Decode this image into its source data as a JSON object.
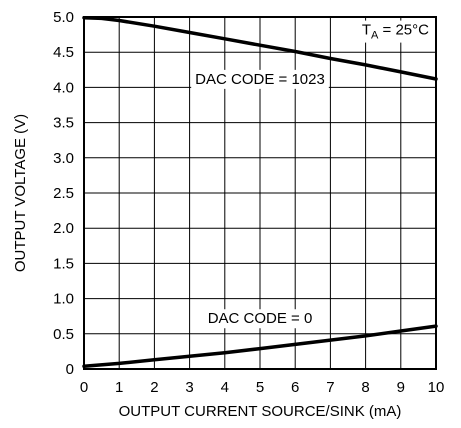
{
  "chart_data": {
    "type": "line",
    "title": "",
    "xlabel": "OUTPUT CURRENT SOURCE/SINK (mA)",
    "ylabel": "OUTPUT VOLTAGE (V)",
    "xlim": [
      0,
      10
    ],
    "ylim": [
      0,
      5.0
    ],
    "x_ticks": [
      0,
      1,
      2,
      3,
      4,
      5,
      6,
      7,
      8,
      9,
      10
    ],
    "x_tick_labels": [
      "0",
      "1",
      "2",
      "3",
      "4",
      "5",
      "6",
      "7",
      "8",
      "9",
      "10"
    ],
    "y_ticks": [
      0,
      0.5,
      1.0,
      1.5,
      2.0,
      2.5,
      3.0,
      3.5,
      4.0,
      4.5,
      5.0
    ],
    "y_tick_labels": [
      "0",
      "0.5",
      "1.0",
      "1.5",
      "2.0",
      "2.5",
      "3.0",
      "3.5",
      "4.0",
      "4.5",
      "5.0"
    ],
    "grid": true,
    "series": [
      {
        "name": "DAC CODE = 1023",
        "x": [
          0,
          0.5,
          1,
          2,
          3,
          4,
          5,
          6,
          7,
          8,
          9,
          10
        ],
        "y": [
          4.99,
          4.98,
          4.95,
          4.87,
          4.78,
          4.69,
          4.6,
          4.51,
          4.41,
          4.32,
          4.22,
          4.12
        ]
      },
      {
        "name": "DAC CODE = 0",
        "x": [
          0,
          1,
          2,
          3,
          4,
          5,
          6,
          7,
          8,
          9,
          10
        ],
        "y": [
          0.04,
          0.08,
          0.13,
          0.18,
          0.23,
          0.29,
          0.35,
          0.41,
          0.47,
          0.54,
          0.61
        ]
      }
    ],
    "annotations": [
      {
        "text_main": "T",
        "text_sub": "A",
        "text_tail": " = 25°C"
      }
    ]
  }
}
